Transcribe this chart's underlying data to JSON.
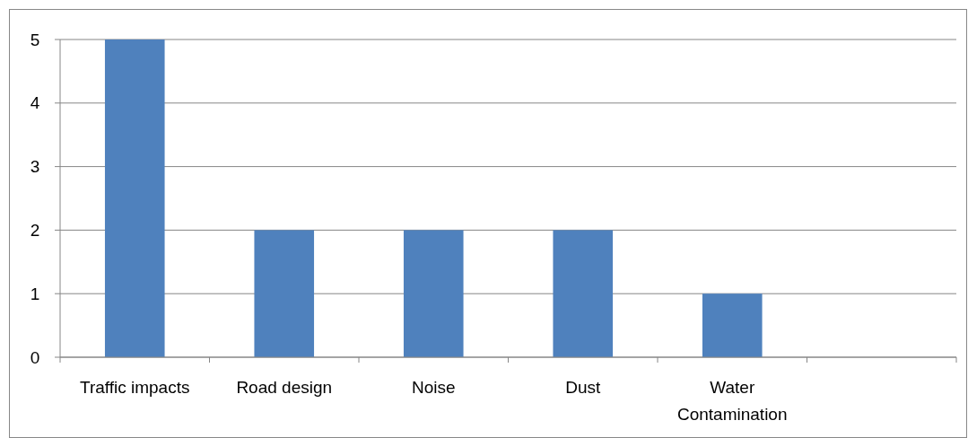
{
  "chart_data": {
    "type": "bar",
    "categories": [
      "Traffic impacts",
      "Road design",
      "Noise",
      "Dust",
      "Water Contamination",
      null
    ],
    "values": [
      5,
      2,
      2,
      2,
      1,
      null
    ],
    "color": "#4f81bd",
    "ylim": [
      0,
      5
    ],
    "yticks": [
      0,
      1,
      2,
      3,
      4,
      5
    ],
    "grid": "y"
  }
}
